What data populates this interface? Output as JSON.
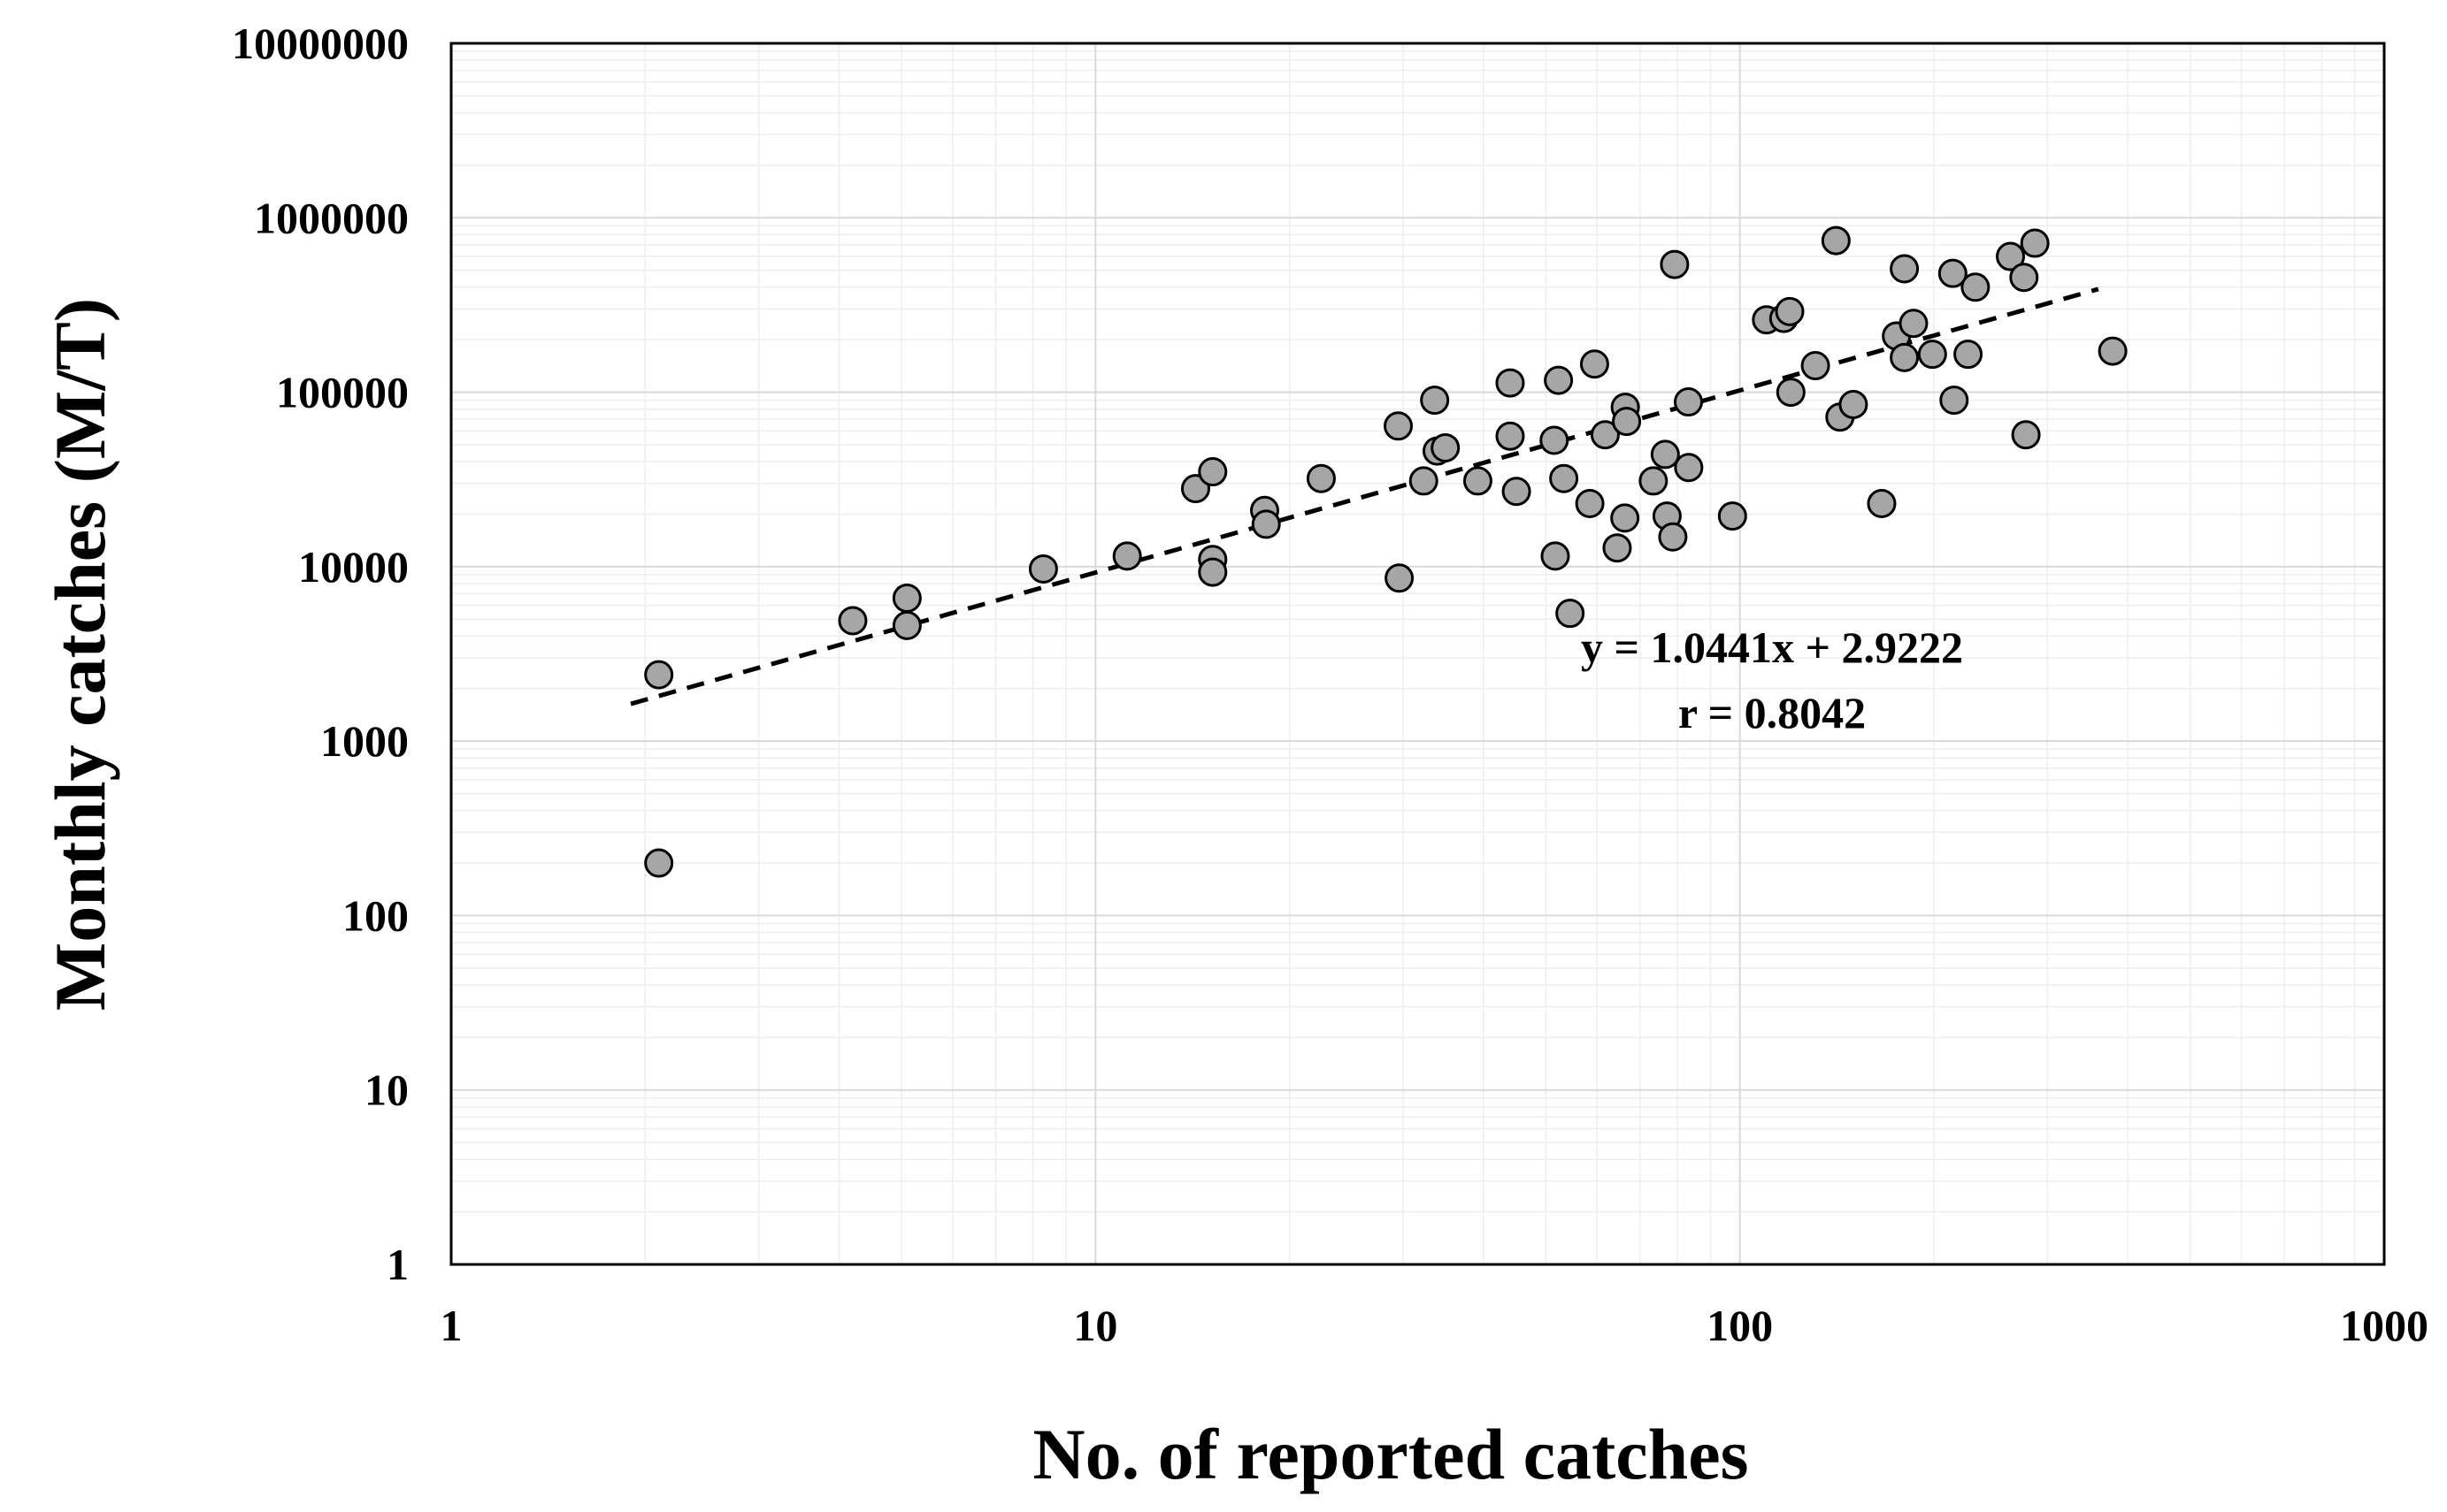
{
  "chart_data": {
    "type": "scatter",
    "xscale": "log",
    "yscale": "log",
    "xlabel": "No. of reported catches",
    "ylabel": "Monthly catches (M/T)",
    "xlim": [
      1,
      1000
    ],
    "ylim": [
      1,
      10000000
    ],
    "x_ticks": [
      "1",
      "10",
      "100",
      "1000"
    ],
    "y_ticks": [
      "1",
      "10",
      "100",
      "1000",
      "10000",
      "100000",
      "1000000",
      "10000000"
    ],
    "grid": true,
    "series": [
      {
        "name": "Monthly catches",
        "points": [
          [
            2.1,
            2400
          ],
          [
            2.1,
            200
          ],
          [
            4.2,
            4900
          ],
          [
            5.1,
            4600
          ],
          [
            5.1,
            6600
          ],
          [
            8.3,
            9700
          ],
          [
            11.2,
            11500
          ],
          [
            14.3,
            28000
          ],
          [
            15.2,
            35000
          ],
          [
            15.2,
            11000
          ],
          [
            15.2,
            9300
          ],
          [
            18.3,
            21000
          ],
          [
            18.4,
            17500
          ],
          [
            22.4,
            32000
          ],
          [
            29.5,
            64000
          ],
          [
            29.6,
            8600
          ],
          [
            32.3,
            31000
          ],
          [
            33.6,
            90000
          ],
          [
            33.9,
            46000
          ],
          [
            34.9,
            48000
          ],
          [
            39.2,
            31000
          ],
          [
            44,
            113000
          ],
          [
            44,
            56000
          ],
          [
            45,
            27000
          ],
          [
            51.5,
            53000
          ],
          [
            51.7,
            11500
          ],
          [
            52.3,
            117000
          ],
          [
            53.3,
            32000
          ],
          [
            54.5,
            5400
          ],
          [
            58.5,
            23000
          ],
          [
            59.5,
            145000
          ],
          [
            61.8,
            57000
          ],
          [
            64.5,
            12800
          ],
          [
            66.3,
            19000
          ],
          [
            66.4,
            82000
          ],
          [
            66.7,
            68000
          ],
          [
            73.4,
            31000
          ],
          [
            76.6,
            44000
          ],
          [
            77.1,
            19500
          ],
          [
            78.7,
            14800
          ],
          [
            79.2,
            540000
          ],
          [
            83.2,
            88000
          ],
          [
            83.3,
            37000
          ],
          [
            97.4,
            19500
          ],
          [
            110,
            260000
          ],
          [
            117,
            265000
          ],
          [
            119.5,
            290000
          ],
          [
            120,
            100000
          ],
          [
            131,
            142000
          ],
          [
            141,
            740000
          ],
          [
            143,
            72000
          ],
          [
            150,
            85000
          ],
          [
            166,
            23000
          ],
          [
            175,
            210000
          ],
          [
            180,
            510000
          ],
          [
            180,
            158000
          ],
          [
            186,
            248000
          ],
          [
            199,
            165000
          ],
          [
            214,
            480000
          ],
          [
            215,
            90000
          ],
          [
            226,
            165000
          ],
          [
            232,
            400000
          ],
          [
            263,
            600000
          ],
          [
            276,
            455000
          ],
          [
            278,
            57000
          ],
          [
            287,
            715000
          ],
          [
            379,
            172000
          ]
        ]
      }
    ],
    "trendline": {
      "type": "linear (log-log)",
      "slope": 1.0441,
      "intercept": 2.9222,
      "x_from": 1.9,
      "x_to": 360
    },
    "annotations": {
      "equation": "y = 1.0441x + 2.9222",
      "r_value": "r = 0.8042"
    }
  }
}
